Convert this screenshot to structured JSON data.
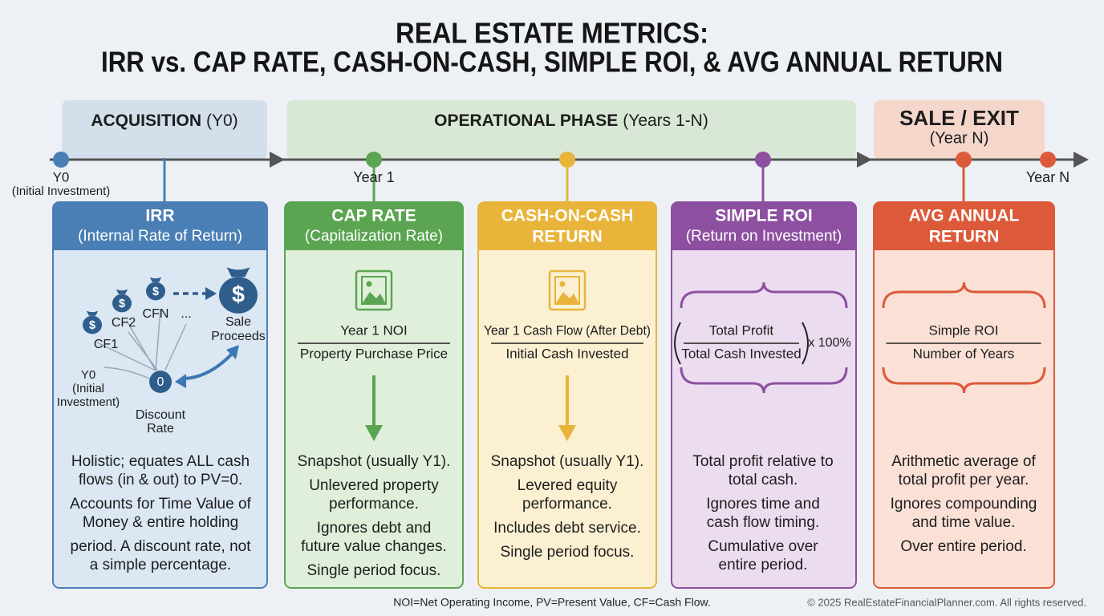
{
  "title": [
    "REAL ESTATE METRICS:",
    "IRR vs. CAP RATE, CASH-ON-CASH, SIMPLE ROI, & AVG ANNUAL RETURN"
  ],
  "phases": [
    {
      "name": "ACQUISITION",
      "period": "(Y0)"
    },
    {
      "name": "OPERATIONAL PHASE",
      "period": "(Years 1-N)"
    },
    {
      "name": "SALE / EXIT",
      "period": "(Year N)"
    }
  ],
  "timeline": {
    "start": [
      "Y0",
      "(Initial Investment)"
    ],
    "year1": "Year 1",
    "end": "Year N"
  },
  "cards": [
    {
      "title": [
        "IRR"
      ],
      "subtitle": "(Internal Rate of Return)",
      "notes": [
        [
          "Holistic; equates ALL cash",
          "flows (in & out) to PV=0."
        ],
        [
          "Accounts for Time Value of",
          "Money & entire holding"
        ],
        [
          "period. A discount rate, not",
          "a simple percentage."
        ]
      ]
    },
    {
      "title": [
        "CAP RATE"
      ],
      "subtitle": "(Capitalization Rate)",
      "formula": {
        "numerator": "Year 1 NOI",
        "denominator": "Property Purchase Price"
      },
      "notes": [
        [
          "Snapshot (usually Y1)."
        ],
        [
          "Unlevered property",
          "performance."
        ],
        [
          "Ignores debt and",
          "future value changes."
        ],
        [
          "Single period focus."
        ]
      ]
    },
    {
      "title": [
        "CASH-ON-CASH",
        "RETURN"
      ],
      "formula": {
        "numerator": "Year 1 Cash Flow (After Debt)",
        "denominator": "Initial Cash Invested"
      },
      "notes": [
        [
          "Snapshot (usually Y1)."
        ],
        [
          "Levered equity",
          "performance."
        ],
        [
          "Includes debt service."
        ],
        [
          "Single period focus."
        ]
      ]
    },
    {
      "title": [
        "SIMPLE ROI"
      ],
      "subtitle": "(Return on Investment)",
      "formula": {
        "numerator": "Total Profit",
        "denominator": "Total Cash Invested",
        "multiplier": "x 100%"
      },
      "notes": [
        [
          "Total profit relative to",
          "total cash."
        ],
        [
          "Ignores time and",
          "cash flow timing."
        ],
        [
          "Cumulative over",
          "entire period."
        ]
      ]
    },
    {
      "title": [
        "AVG ANNUAL",
        "RETURN"
      ],
      "formula": {
        "numerator": "Simple ROI",
        "denominator": "Number of Years"
      },
      "notes": [
        [
          "Arithmetic average of",
          "total profit per year."
        ],
        [
          "Ignores compounding",
          "and time value."
        ],
        [
          "Over entire period."
        ]
      ]
    }
  ],
  "irr_diagram": {
    "flows": [
      "CF1",
      "CF2",
      "CFN"
    ],
    "ellipsis": "...",
    "sale": [
      "Sale",
      "Proceeds"
    ],
    "start": [
      "Y0",
      "(Initial",
      "Investment)"
    ],
    "center": "0",
    "center_label": [
      "Discount",
      "Rate"
    ],
    "symbol": "$"
  },
  "footnote": "NOI=Net Operating Income, PV=Present Value, CF=Cash Flow.",
  "copyright": "© 2025 RealEstateFinancialPlanner.com. All rights reserved."
}
